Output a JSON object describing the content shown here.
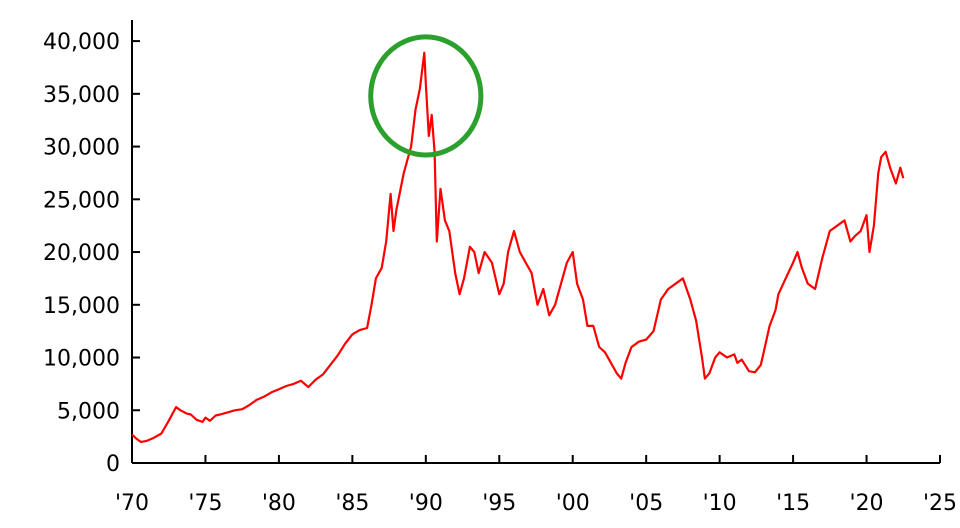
{
  "chart_data": {
    "type": "line",
    "title": "",
    "xlabel": "",
    "ylabel": "",
    "xlim": [
      1970,
      2025
    ],
    "ylim": [
      0,
      42000
    ],
    "grid": false,
    "legend": "none",
    "x_ticks": [
      {
        "value": 1970,
        "label": "'70"
      },
      {
        "value": 1975,
        "label": "'75"
      },
      {
        "value": 1980,
        "label": "'80"
      },
      {
        "value": 1985,
        "label": "'85"
      },
      {
        "value": 1990,
        "label": "'90"
      },
      {
        "value": 1995,
        "label": "'95"
      },
      {
        "value": 2000,
        "label": "'00"
      },
      {
        "value": 2005,
        "label": "'05"
      },
      {
        "value": 2010,
        "label": "'10"
      },
      {
        "value": 2015,
        "label": "'15"
      },
      {
        "value": 2020,
        "label": "'20"
      },
      {
        "value": 2025,
        "label": "'25"
      }
    ],
    "y_ticks": [
      {
        "value": 0,
        "label": "0"
      },
      {
        "value": 5000,
        "label": "5,000"
      },
      {
        "value": 10000,
        "label": "10,000"
      },
      {
        "value": 15000,
        "label": "15,000"
      },
      {
        "value": 20000,
        "label": "20,000"
      },
      {
        "value": 25000,
        "label": "25,000"
      },
      {
        "value": 30000,
        "label": "30,000"
      },
      {
        "value": 35000,
        "label": "35,000"
      },
      {
        "value": 40000,
        "label": "40,000"
      }
    ],
    "series": [
      {
        "color": "#ff0000",
        "x": [
          1970.0,
          1970.3,
          1970.6,
          1971.0,
          1971.5,
          1972.0,
          1972.5,
          1973.0,
          1973.3,
          1973.7,
          1974.0,
          1974.4,
          1974.8,
          1975.0,
          1975.3,
          1975.7,
          1976.0,
          1976.5,
          1977.0,
          1977.5,
          1978.0,
          1978.5,
          1979.0,
          1979.5,
          1980.0,
          1980.5,
          1981.0,
          1981.5,
          1982.0,
          1982.5,
          1983.0,
          1983.5,
          1984.0,
          1984.5,
          1985.0,
          1985.5,
          1986.0,
          1986.3,
          1986.6,
          1987.0,
          1987.3,
          1987.6,
          1987.8,
          1988.0,
          1988.5,
          1989.0,
          1989.3,
          1989.6,
          1989.9,
          1990.0,
          1990.2,
          1990.4,
          1990.6,
          1990.75,
          1991.0,
          1991.3,
          1991.6,
          1992.0,
          1992.3,
          1992.6,
          1993.0,
          1993.3,
          1993.6,
          1994.0,
          1994.5,
          1995.0,
          1995.3,
          1995.6,
          1996.0,
          1996.4,
          1996.8,
          1997.2,
          1997.6,
          1998.0,
          1998.4,
          1998.8,
          1999.2,
          1999.6,
          2000.0,
          2000.3,
          2000.7,
          2001.0,
          2001.4,
          2001.8,
          2002.2,
          2002.6,
          2003.0,
          2003.3,
          2003.6,
          2004.0,
          2004.5,
          2005.0,
          2005.5,
          2006.0,
          2006.5,
          2007.0,
          2007.5,
          2008.0,
          2008.4,
          2008.8,
          2009.0,
          2009.3,
          2009.7,
          2010.0,
          2010.5,
          2011.0,
          2011.2,
          2011.5,
          2012.0,
          2012.4,
          2012.8,
          2013.0,
          2013.4,
          2013.8,
          2014.0,
          2014.5,
          2015.0,
          2015.3,
          2015.6,
          2016.0,
          2016.5,
          2017.0,
          2017.5,
          2018.0,
          2018.5,
          2018.9,
          2019.2,
          2019.6,
          2020.0,
          2020.2,
          2020.5,
          2020.8,
          2021.0,
          2021.3,
          2021.6,
          2022.0,
          2022.3,
          2022.5
        ],
        "y": [
          2700,
          2300,
          2000,
          2100,
          2400,
          2800,
          4000,
          5300,
          5000,
          4700,
          4600,
          4100,
          3900,
          4300,
          4000,
          4500,
          4600,
          4800,
          5000,
          5100,
          5500,
          6000,
          6300,
          6700,
          7000,
          7300,
          7500,
          7800,
          7200,
          7900,
          8400,
          9300,
          10200,
          11300,
          12200,
          12600,
          12800,
          15000,
          17500,
          18500,
          21000,
          25500,
          22000,
          24000,
          27500,
          30000,
          33500,
          35500,
          38900,
          36000,
          31000,
          33000,
          29500,
          21000,
          26000,
          23000,
          22000,
          18000,
          16000,
          17500,
          20500,
          20000,
          18000,
          20000,
          19000,
          16000,
          17000,
          20000,
          22000,
          20000,
          19000,
          18000,
          15000,
          16500,
          14000,
          15000,
          17000,
          19000,
          20000,
          17000,
          15500,
          13000,
          13000,
          11000,
          10500,
          9500,
          8500,
          8000,
          9500,
          11000,
          11500,
          11700,
          12500,
          15500,
          16500,
          17000,
          17500,
          15500,
          13500,
          10000,
          8000,
          8500,
          10000,
          10500,
          10000,
          10300,
          9500,
          9800,
          8700,
          8600,
          9300,
          10500,
          13000,
          14500,
          16000,
          17500,
          19000,
          20000,
          18500,
          17000,
          16500,
          19500,
          22000,
          22500,
          23000,
          21000,
          21500,
          22000,
          23500,
          20000,
          22500,
          27500,
          29000,
          29500,
          28000,
          26500,
          28000,
          27000
        ]
      }
    ],
    "annotations": [
      {
        "type": "circle",
        "x": 1990.0,
        "y": 34800,
        "rx_years": 3.75,
        "ry_value": 5600,
        "color": "#2ca02c"
      }
    ]
  }
}
